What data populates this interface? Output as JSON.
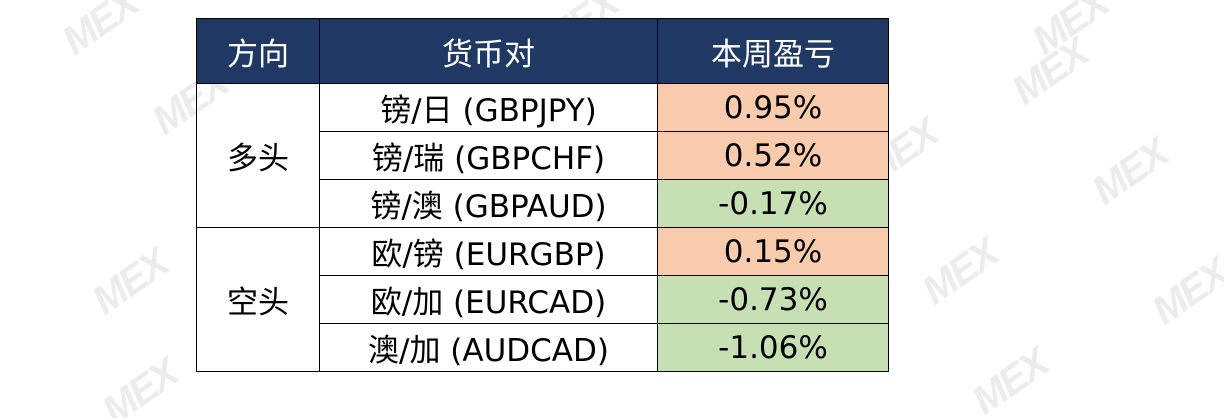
{
  "colors": {
    "header_bg": "#1f3864",
    "header_text": "#ffffff",
    "positive_bg": "#f8cbad",
    "negative_bg": "#c6e0b4",
    "border": "#000000"
  },
  "watermark": "MEX",
  "table": {
    "headers": [
      "方向",
      "货币对",
      "本周盈亏"
    ],
    "groups": [
      {
        "direction": "多头",
        "rows": [
          {
            "pair": "镑/日 (GBPJPY)",
            "pnl": "0.95%",
            "sign": "positive"
          },
          {
            "pair": "镑/瑞 (GBPCHF)",
            "pnl": "0.52%",
            "sign": "positive"
          },
          {
            "pair": "镑/澳 (GBPAUD)",
            "pnl": "-0.17%",
            "sign": "negative"
          }
        ]
      },
      {
        "direction": "空头",
        "rows": [
          {
            "pair": "欧/镑 (EURGBP)",
            "pnl": "0.15%",
            "sign": "positive"
          },
          {
            "pair": "欧/加 (EURCAD)",
            "pnl": "-0.73%",
            "sign": "negative"
          },
          {
            "pair": "澳/加 (AUDCAD)",
            "pnl": "-1.06%",
            "sign": "negative"
          }
        ]
      }
    ]
  }
}
